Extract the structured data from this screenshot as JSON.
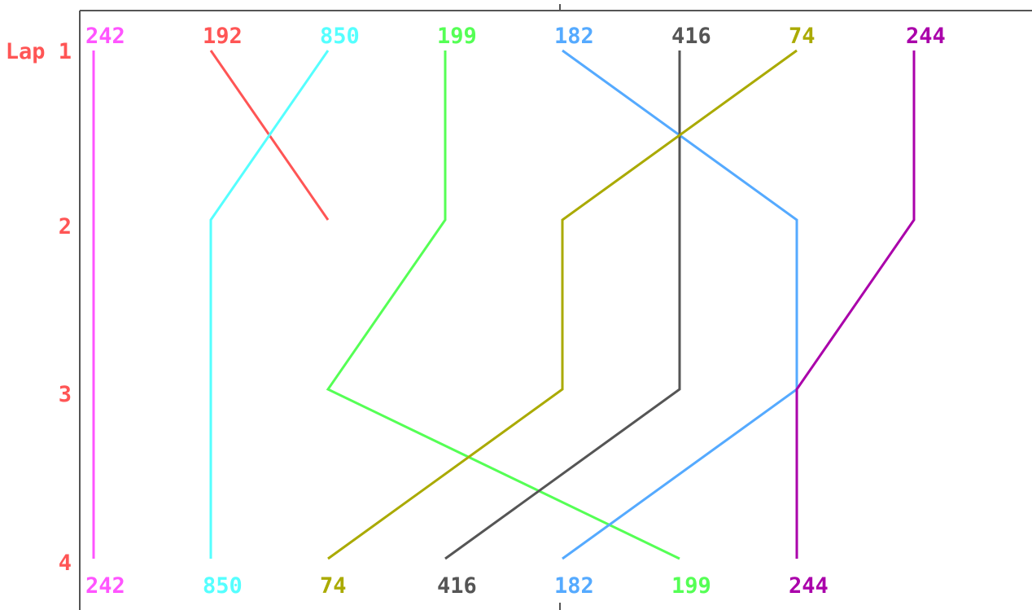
{
  "chart_data": {
    "type": "line",
    "title": "",
    "xlabel": "",
    "ylabel": "",
    "lap_labels": [
      "Lap 1",
      "2",
      "3",
      "4"
    ],
    "lap_label_color": "#ff5555",
    "grid": false,
    "series": [
      {
        "car": "242",
        "color": "#ff55ff",
        "positions": [
          1,
          1,
          1,
          1
        ]
      },
      {
        "car": "192",
        "color": "#ff5555",
        "positions": [
          2,
          3,
          null,
          null
        ]
      },
      {
        "car": "850",
        "color": "#55ffff",
        "positions": [
          3,
          2,
          2,
          2
        ]
      },
      {
        "car": "199",
        "color": "#55ff55",
        "positions": [
          4,
          4,
          3,
          6
        ]
      },
      {
        "car": "182",
        "color": "#55aaff",
        "positions": [
          5,
          7,
          7,
          5
        ]
      },
      {
        "car": "416",
        "color": "#555555",
        "positions": [
          6,
          6,
          6,
          4
        ]
      },
      {
        "car": "74",
        "color": "#aaaa00",
        "positions": [
          7,
          5,
          5,
          3
        ]
      },
      {
        "car": "244",
        "color": "#aa00aa",
        "positions": [
          8,
          8,
          7,
          7
        ]
      }
    ],
    "top_labels": [
      {
        "text": "242",
        "color": "#ff55ff",
        "position": 1
      },
      {
        "text": "192",
        "color": "#ff5555",
        "position": 2
      },
      {
        "text": "850",
        "color": "#55ffff",
        "position": 3
      },
      {
        "text": "199",
        "color": "#55ff55",
        "position": 4
      },
      {
        "text": "182",
        "color": "#55aaff",
        "position": 5
      },
      {
        "text": "416",
        "color": "#555555",
        "position": 6
      },
      {
        "text": "74",
        "color": "#aaaa00",
        "position": 7
      },
      {
        "text": "244",
        "color": "#aa00aa",
        "position": 8
      }
    ],
    "bottom_labels": [
      {
        "text": "242",
        "color": "#ff55ff",
        "position": 1
      },
      {
        "text": "850",
        "color": "#55ffff",
        "position": 2
      },
      {
        "text": "74",
        "color": "#aaaa00",
        "position": 3
      },
      {
        "text": "416",
        "color": "#555555",
        "position": 4
      },
      {
        "text": "182",
        "color": "#55aaff",
        "position": 5
      },
      {
        "text": "199",
        "color": "#55ff55",
        "position": 6
      },
      {
        "text": "244",
        "color": "#aa00aa",
        "position": 7
      }
    ]
  }
}
